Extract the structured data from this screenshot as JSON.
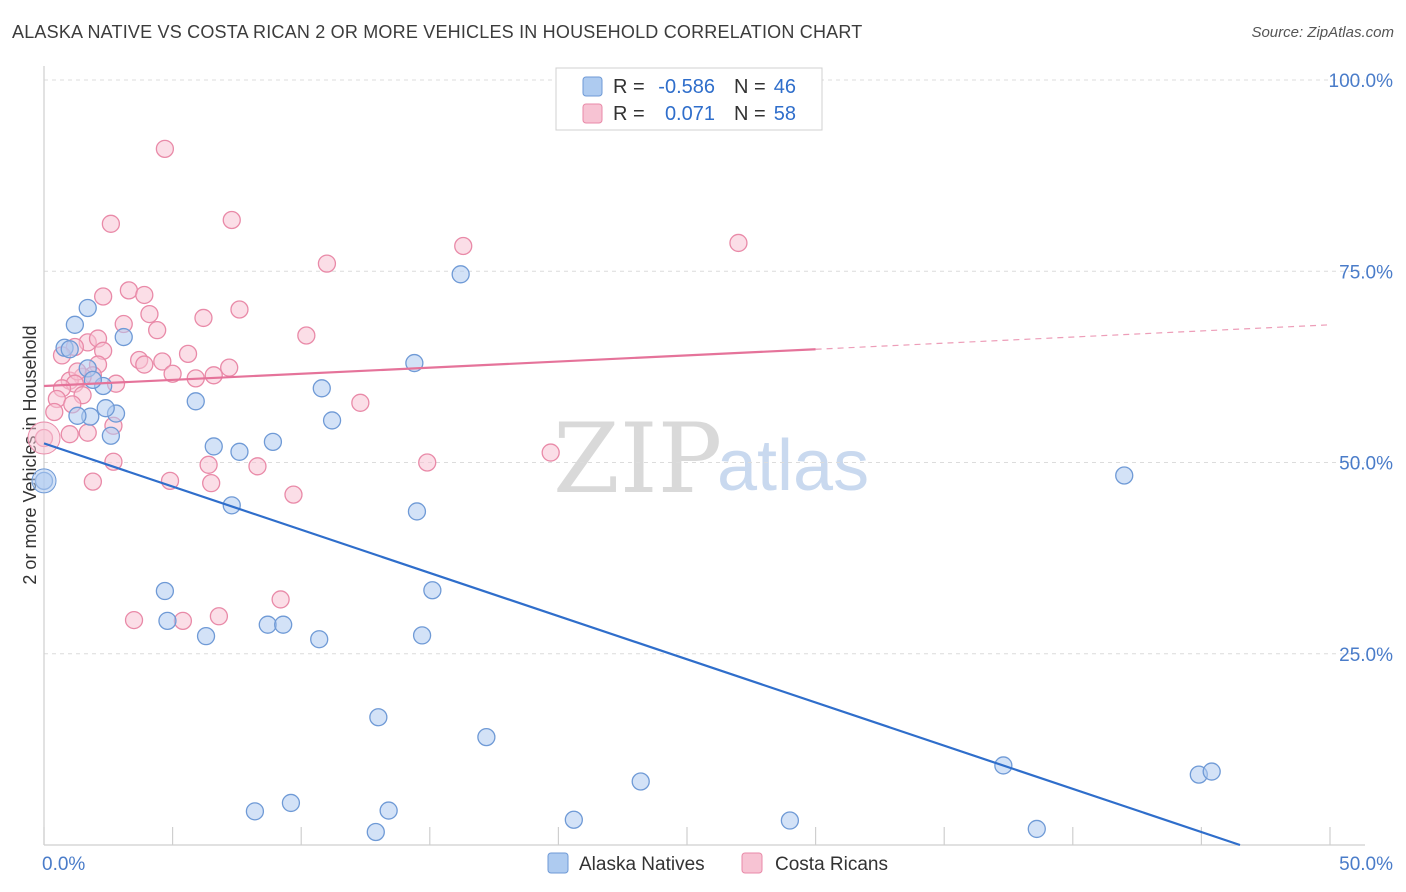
{
  "header": {
    "title": "ALASKA NATIVE VS COSTA RICAN 2 OR MORE VEHICLES IN HOUSEHOLD CORRELATION CHART",
    "source": "Source: ZipAtlas.com"
  },
  "watermark": {
    "zip": "ZIP",
    "atlas": "atlas"
  },
  "legend_top": {
    "rows": [
      {
        "r_label": "R =",
        "r_value": "-0.586",
        "n_label": "N =",
        "n_value": "46"
      },
      {
        "r_label": "R =",
        "r_value": "0.071",
        "n_label": "N =",
        "n_value": "58"
      }
    ]
  },
  "legend_bottom": {
    "items": [
      "Alaska Natives",
      "Costa Ricans"
    ]
  },
  "colors": {
    "blue_fill": "#aecbf0",
    "blue_stroke": "#6f9ad6",
    "blue_line": "#2f6ecb",
    "pink_fill": "#f7c3d3",
    "pink_stroke": "#e98aa8",
    "pink_line": "#e5739a",
    "tick_text": "#4a7cc9"
  },
  "chart_data": {
    "type": "scatter",
    "title": "ALASKA NATIVE VS COSTA RICAN 2 OR MORE VEHICLES IN HOUSEHOLD CORRELATION CHART",
    "xlabel": "",
    "ylabel": "2 or more Vehicles in Household",
    "xlim": [
      0,
      50
    ],
    "ylim": [
      0,
      100
    ],
    "x_tick_labels": [
      "0.0%",
      "50.0%"
    ],
    "y_tick_labels": [
      "25.0%",
      "50.0%",
      "75.0%",
      "100.0%"
    ],
    "y_ticks": [
      25,
      50,
      75,
      100
    ],
    "grid": true,
    "series": [
      {
        "name": "Alaska Natives",
        "color": "#6f9ad6",
        "points": [
          [
            0.0,
            47.6
          ],
          [
            1.2,
            68.0
          ],
          [
            0.8,
            65.0
          ],
          [
            1.7,
            70.2
          ],
          [
            1.0,
            64.8
          ],
          [
            1.7,
            62.3
          ],
          [
            2.3,
            60.0
          ],
          [
            1.9,
            60.8
          ],
          [
            3.1,
            66.4
          ],
          [
            1.8,
            56.0
          ],
          [
            1.3,
            56.1
          ],
          [
            2.8,
            56.4
          ],
          [
            2.4,
            57.1
          ],
          [
            2.6,
            53.5
          ],
          [
            5.9,
            58.0
          ],
          [
            6.6,
            52.1
          ],
          [
            7.6,
            51.4
          ],
          [
            8.9,
            52.7
          ],
          [
            10.8,
            59.7
          ],
          [
            11.2,
            55.5
          ],
          [
            14.4,
            63.0
          ],
          [
            16.2,
            74.6
          ],
          [
            14.5,
            43.6
          ],
          [
            7.3,
            44.4
          ],
          [
            4.7,
            33.2
          ],
          [
            4.8,
            29.3
          ],
          [
            6.3,
            27.3
          ],
          [
            8.7,
            28.8
          ],
          [
            9.3,
            28.8
          ],
          [
            10.7,
            26.9
          ],
          [
            15.1,
            33.3
          ],
          [
            14.7,
            27.4
          ],
          [
            13.0,
            16.7
          ],
          [
            17.2,
            14.1
          ],
          [
            8.2,
            4.4
          ],
          [
            9.6,
            5.5
          ],
          [
            12.9,
            1.7
          ],
          [
            13.4,
            4.5
          ],
          [
            20.6,
            3.3
          ],
          [
            23.2,
            8.3
          ],
          [
            29.0,
            3.2
          ],
          [
            37.3,
            10.4
          ],
          [
            38.6,
            2.1
          ],
          [
            44.9,
            9.2
          ],
          [
            45.4,
            9.6
          ],
          [
            42.0,
            48.3
          ]
        ]
      },
      {
        "name": "Costa Ricans",
        "color": "#e98aa8",
        "points": [
          [
            4.7,
            91.0
          ],
          [
            2.6,
            81.2
          ],
          [
            7.3,
            81.7
          ],
          [
            11.0,
            76.0
          ],
          [
            16.3,
            78.3
          ],
          [
            27.0,
            78.7
          ],
          [
            3.3,
            72.5
          ],
          [
            2.3,
            71.7
          ],
          [
            3.9,
            71.9
          ],
          [
            7.6,
            70.0
          ],
          [
            4.1,
            69.4
          ],
          [
            6.2,
            68.9
          ],
          [
            3.1,
            68.1
          ],
          [
            4.4,
            67.3
          ],
          [
            10.2,
            66.6
          ],
          [
            1.7,
            65.7
          ],
          [
            2.1,
            66.2
          ],
          [
            2.3,
            64.6
          ],
          [
            1.2,
            65.1
          ],
          [
            5.6,
            64.2
          ],
          [
            0.7,
            64.0
          ],
          [
            3.7,
            63.4
          ],
          [
            4.6,
            63.2
          ],
          [
            7.2,
            62.4
          ],
          [
            6.6,
            61.4
          ],
          [
            2.1,
            62.8
          ],
          [
            1.9,
            61.4
          ],
          [
            1.5,
            61.2
          ],
          [
            3.9,
            62.8
          ],
          [
            1.0,
            60.7
          ],
          [
            2.8,
            60.3
          ],
          [
            1.3,
            61.9
          ],
          [
            5.0,
            61.6
          ],
          [
            1.2,
            60.3
          ],
          [
            0.7,
            59.7
          ],
          [
            5.9,
            61.0
          ],
          [
            0.5,
            58.3
          ],
          [
            1.5,
            58.8
          ],
          [
            1.1,
            57.6
          ],
          [
            12.3,
            57.8
          ],
          [
            0.4,
            56.6
          ],
          [
            2.7,
            54.8
          ],
          [
            1.7,
            53.9
          ],
          [
            1.0,
            53.7
          ],
          [
            0.0,
            53.2
          ],
          [
            19.7,
            51.3
          ],
          [
            2.7,
            50.1
          ],
          [
            8.3,
            49.5
          ],
          [
            6.4,
            49.7
          ],
          [
            14.9,
            50.0
          ],
          [
            4.9,
            47.6
          ],
          [
            1.9,
            47.5
          ],
          [
            6.5,
            47.3
          ],
          [
            9.7,
            45.8
          ],
          [
            9.2,
            32.1
          ],
          [
            6.8,
            29.9
          ],
          [
            5.4,
            29.3
          ],
          [
            3.5,
            29.4
          ]
        ]
      }
    ],
    "trend_lines": [
      {
        "series": "Alaska Natives",
        "x": [
          0,
          46.5
        ],
        "y": [
          52.5,
          0
        ],
        "dashed_extension": false
      },
      {
        "series": "Costa Ricans",
        "x": [
          0,
          30
        ],
        "y": [
          60.0,
          64.8
        ],
        "dashed_to": [
          50,
          68.0
        ]
      }
    ],
    "stats": [
      {
        "series": "Alaska Natives",
        "R": -0.586,
        "N": 46
      },
      {
        "series": "Costa Ricans",
        "R": 0.071,
        "N": 58
      }
    ]
  }
}
